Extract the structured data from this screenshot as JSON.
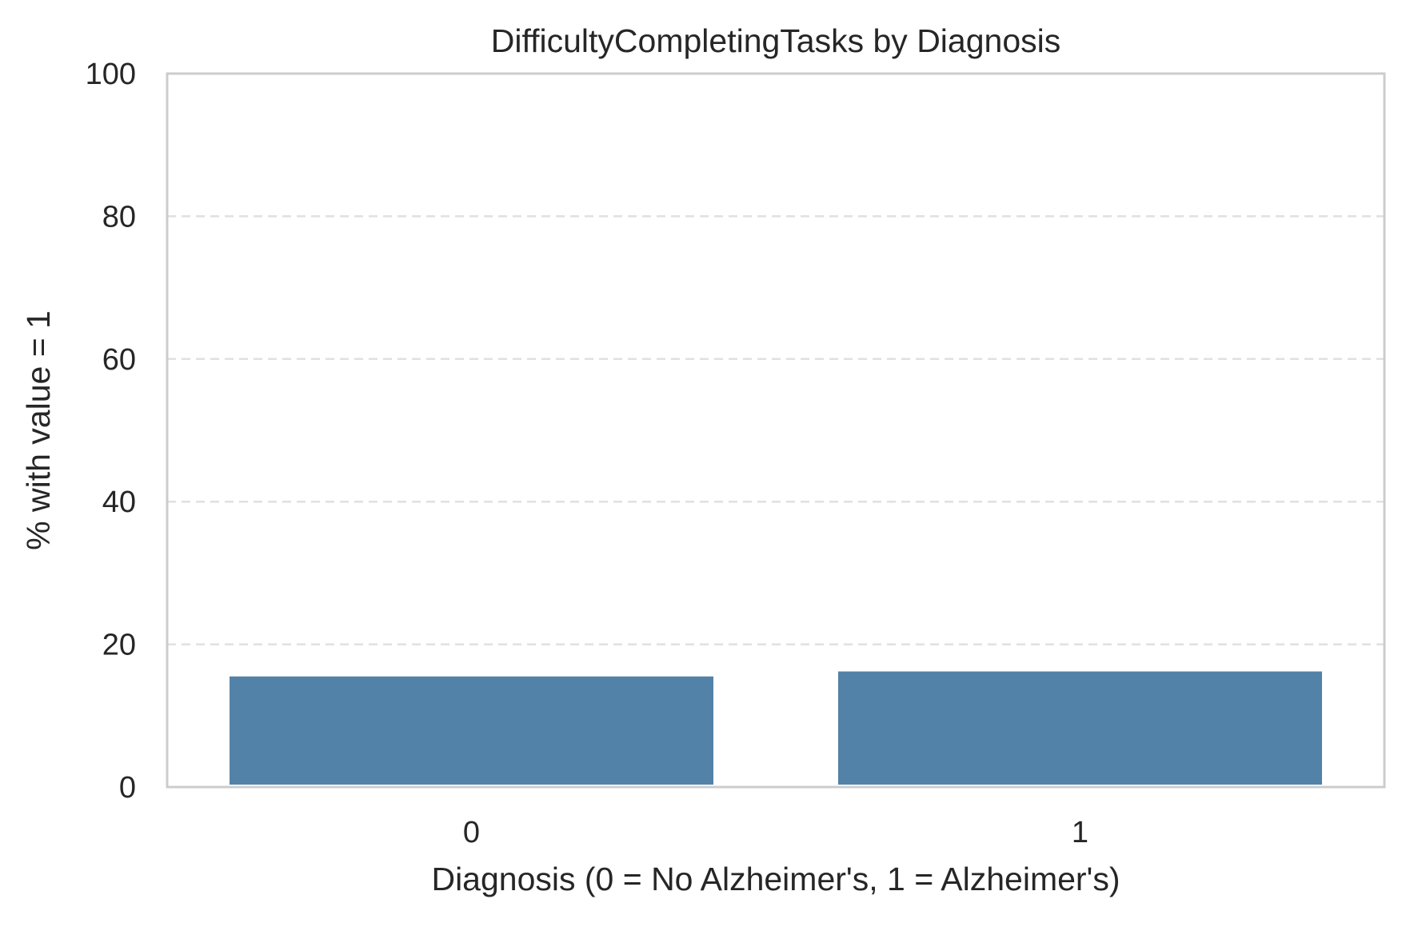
{
  "chart_data": {
    "type": "bar",
    "title": "DifficultyCompletingTasks by Diagnosis",
    "xlabel": "Diagnosis (0 = No Alzheimer's, 1 = Alzheimer's)",
    "ylabel": "% with value = 1",
    "categories": [
      "0",
      "1"
    ],
    "values": [
      15.5,
      16.2
    ],
    "ylim": [
      0,
      100
    ],
    "yticks": [
      "0",
      "20",
      "40",
      "60",
      "80",
      "100"
    ],
    "grid": "horizontal dashed",
    "legend": "none",
    "colors": {
      "bar": "#5382a8",
      "grid": "#e0e0e0",
      "spine": "#cccccc",
      "text": "#262626"
    }
  }
}
